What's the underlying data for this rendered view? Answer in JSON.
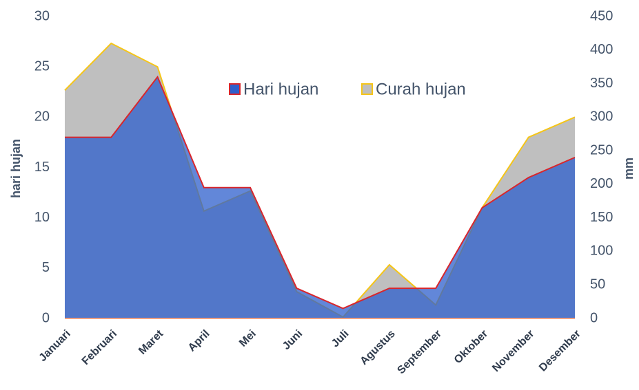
{
  "chart_data": {
    "type": "area",
    "categories": [
      "Januari",
      "Februari",
      "Maret",
      "April",
      "Mei",
      "Juni",
      "Juli",
      "Agustus",
      "September",
      "Oktober",
      "November",
      "Desember"
    ],
    "series": [
      {
        "name": "Hari hujan",
        "color": "#2e5fcc",
        "line_color": "#d9262b",
        "values": [
          18,
          18,
          24,
          13,
          13,
          3,
          1,
          3,
          3,
          11,
          14,
          16
        ]
      },
      {
        "name": "Curah hujan",
        "color": "#bfbfbf",
        "line_color": "#f5c518",
        "axis": "y2",
        "values": [
          340,
          410,
          375,
          160,
          190,
          40,
          2,
          80,
          20,
          165,
          270,
          300
        ]
      }
    ],
    "ylabel": "hari hujan",
    "y2label": "mm",
    "ylim": [
      0,
      30
    ],
    "yticks": [
      0,
      5,
      10,
      15,
      20,
      25,
      30
    ],
    "y2lim": [
      0,
      450
    ],
    "y2ticks": [
      0,
      50,
      100,
      150,
      200,
      250,
      300,
      350,
      400,
      450
    ],
    "legend": "top"
  }
}
